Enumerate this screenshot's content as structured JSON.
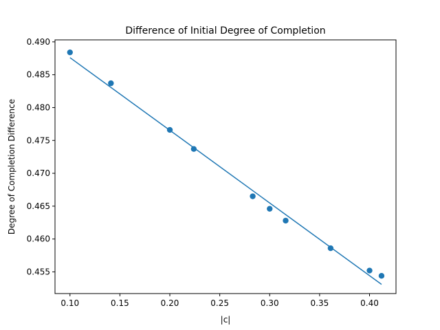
{
  "chart_data": {
    "type": "scatter",
    "title": "Difference of Initial Degree of Completion",
    "xlabel": "|c|",
    "ylabel": "Degree of Completion Difference",
    "xlim": [
      0.085,
      0.4265
    ],
    "ylim": [
      0.4517,
      0.4903
    ],
    "xticks": [
      0.1,
      0.15,
      0.2,
      0.25,
      0.3,
      0.35,
      0.4
    ],
    "xtick_labels": [
      "0.10",
      "0.15",
      "0.20",
      "0.25",
      "0.30",
      "0.35",
      "0.40"
    ],
    "yticks": [
      0.455,
      0.46,
      0.465,
      0.47,
      0.475,
      0.48,
      0.485,
      0.49
    ],
    "ytick_labels": [
      "0.455",
      "0.460",
      "0.465",
      "0.470",
      "0.475",
      "0.480",
      "0.485",
      "0.490"
    ],
    "grid": false,
    "series": [
      {
        "kind": "scatter",
        "color": "#1f77b4",
        "x": [
          0.1,
          0.141,
          0.2,
          0.224,
          0.283,
          0.3,
          0.316,
          0.361,
          0.4,
          0.412
        ],
        "y": [
          0.4884,
          0.4837,
          0.4766,
          0.4737,
          0.4665,
          0.4646,
          0.4628,
          0.4586,
          0.4552,
          0.4544
        ]
      },
      {
        "kind": "line",
        "color": "#1f77b4",
        "x": [
          0.1,
          0.412
        ],
        "y": [
          0.4876,
          0.4531
        ]
      }
    ]
  }
}
